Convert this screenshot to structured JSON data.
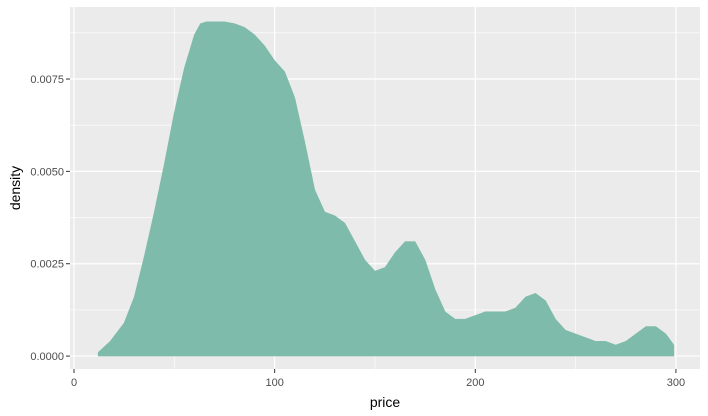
{
  "chart_data": {
    "type": "area",
    "title": "",
    "xlabel": "price",
    "ylabel": "density",
    "xlim": [
      -2,
      312
    ],
    "ylim": [
      -0.00035,
      0.00945
    ],
    "x_ticks": [
      0,
      100,
      200,
      300
    ],
    "x_tick_labels": [
      "0",
      "100",
      "200",
      "300"
    ],
    "y_ticks": [
      0,
      0.0025,
      0.005,
      0.0075
    ],
    "y_tick_labels": [
      "0.0000",
      "0.0025",
      "0.0050",
      "0.0075"
    ],
    "grid": true,
    "legend": "none",
    "fill_color": "#7fbbaa",
    "panel_background": "#ebebeb",
    "series": [
      {
        "x": [
          12,
          18,
          25,
          30,
          35,
          40,
          45,
          50,
          55,
          60,
          63,
          66,
          70,
          75,
          80,
          85,
          90,
          95,
          100,
          105,
          110,
          115,
          120,
          125,
          130,
          135,
          140,
          145,
          150,
          155,
          160,
          165,
          170,
          175,
          180,
          185,
          190,
          195,
          200,
          205,
          210,
          215,
          220,
          225,
          230,
          235,
          240,
          245,
          250,
          255,
          260,
          265,
          270,
          275,
          280,
          285,
          290,
          295,
          299
        ],
        "y": [
          0.0001,
          0.0004,
          0.0009,
          0.0016,
          0.0027,
          0.0039,
          0.0052,
          0.0066,
          0.0078,
          0.0087,
          0.009,
          0.00905,
          0.00905,
          0.00905,
          0.009,
          0.0089,
          0.0087,
          0.0084,
          0.008,
          0.0077,
          0.007,
          0.0058,
          0.0045,
          0.0039,
          0.0038,
          0.0036,
          0.0031,
          0.0026,
          0.0023,
          0.0024,
          0.0028,
          0.0031,
          0.0031,
          0.0026,
          0.0018,
          0.0012,
          0.001,
          0.001,
          0.0011,
          0.0012,
          0.0012,
          0.0012,
          0.0013,
          0.0016,
          0.0017,
          0.0015,
          0.001,
          0.0007,
          0.0006,
          0.0005,
          0.0004,
          0.0004,
          0.0003,
          0.0004,
          0.0006,
          0.0008,
          0.0008,
          0.0006,
          0.0003
        ]
      }
    ]
  }
}
